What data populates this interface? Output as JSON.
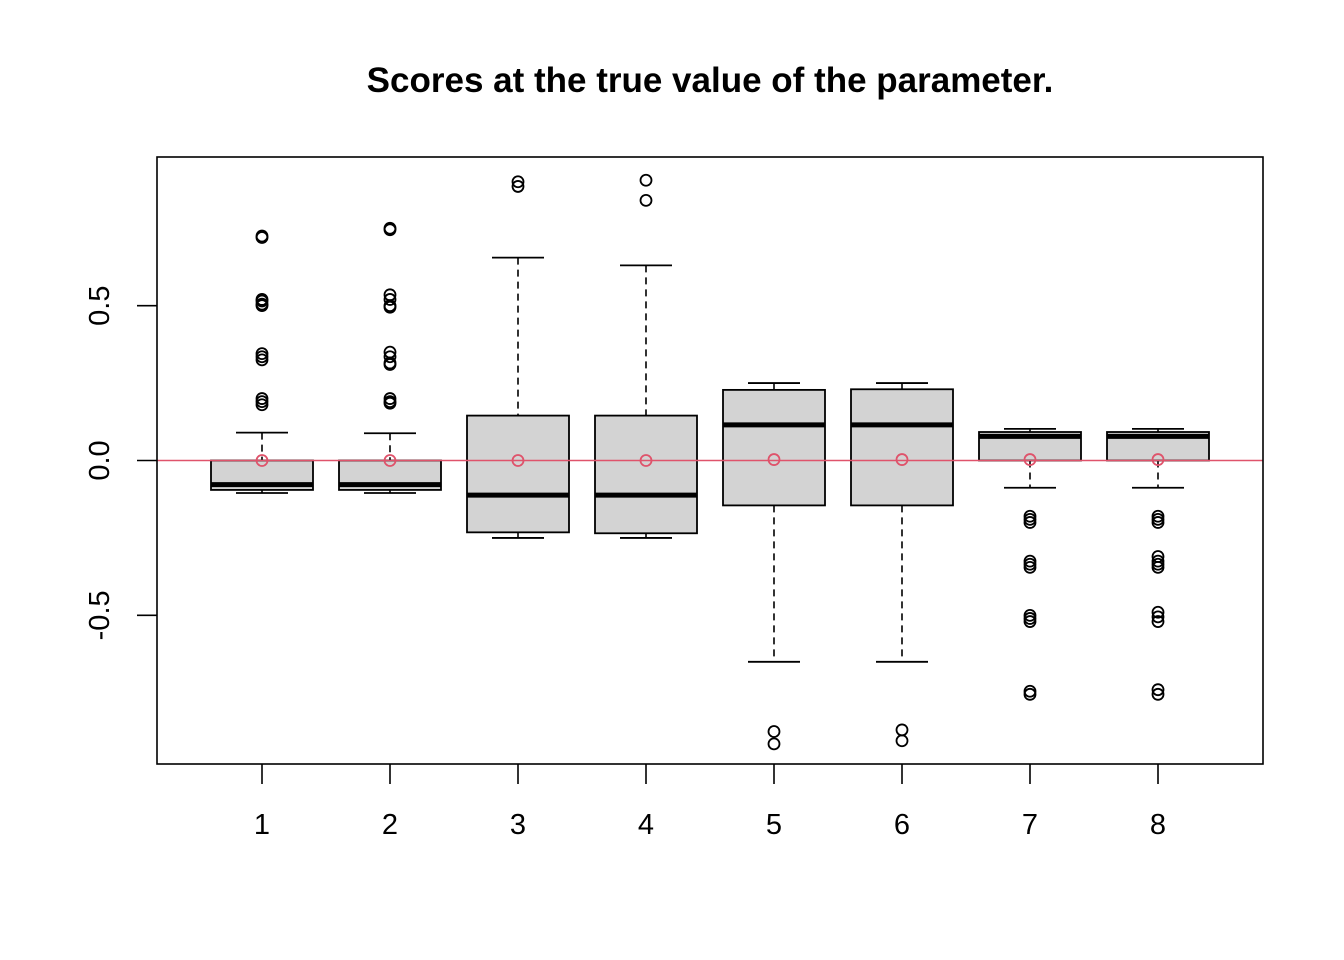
{
  "chart_data": {
    "type": "boxplot",
    "title": "Scores at the true value of the parameter.",
    "xlabel": "",
    "ylabel": "",
    "categories": [
      "1",
      "2",
      "3",
      "4",
      "5",
      "6",
      "7",
      "8"
    ],
    "y_ticks": [
      -0.5,
      0.0,
      0.5
    ],
    "y_tick_labels": [
      "-0.5",
      "0.0",
      "0.5"
    ],
    "ylim": [
      -0.98,
      0.98
    ],
    "reference_line": {
      "y": 0.0,
      "color": "#DF536B"
    },
    "colors": {
      "box_fill": "#D3D3D3",
      "stroke": "#000000",
      "mean_marker": "#DF536B",
      "reference_line": "#DF536B"
    },
    "boxes": [
      {
        "label": "1",
        "lower_whisker": -0.105,
        "q1": -0.095,
        "median": -0.078,
        "q3": 0.0,
        "upper_whisker": 0.09,
        "mean": 0.0,
        "outliers": [
          0.72,
          0.725,
          0.52,
          0.515,
          0.505,
          0.5,
          0.345,
          0.335,
          0.325,
          0.2,
          0.19,
          0.18
        ]
      },
      {
        "label": "2",
        "lower_whisker": -0.105,
        "q1": -0.095,
        "median": -0.078,
        "q3": 0.0,
        "upper_whisker": 0.088,
        "mean": 0.0,
        "outliers": [
          0.75,
          0.745,
          0.535,
          0.52,
          0.5,
          0.495,
          0.35,
          0.335,
          0.315,
          0.31,
          0.2,
          0.19,
          0.185
        ]
      },
      {
        "label": "3",
        "lower_whisker": -0.25,
        "q1": -0.232,
        "median": -0.112,
        "q3": 0.145,
        "upper_whisker": 0.655,
        "mean": 0.0,
        "outliers": [
          0.9,
          0.885
        ]
      },
      {
        "label": "4",
        "lower_whisker": -0.25,
        "q1": -0.235,
        "median": -0.112,
        "q3": 0.145,
        "upper_whisker": 0.63,
        "mean": 0.0,
        "outliers": [
          0.905,
          0.84
        ]
      },
      {
        "label": "5",
        "lower_whisker": -0.65,
        "q1": -0.145,
        "median": 0.115,
        "q3": 0.228,
        "upper_whisker": 0.25,
        "mean": 0.003,
        "outliers": [
          -0.875,
          -0.915
        ]
      },
      {
        "label": "6",
        "lower_whisker": -0.65,
        "q1": -0.145,
        "median": 0.115,
        "q3": 0.23,
        "upper_whisker": 0.25,
        "mean": 0.003,
        "outliers": [
          -0.87,
          -0.905
        ]
      },
      {
        "label": "7",
        "lower_whisker": -0.088,
        "q1": 0.0,
        "median": 0.078,
        "q3": 0.092,
        "upper_whisker": 0.102,
        "mean": 0.003,
        "outliers": [
          -0.18,
          -0.19,
          -0.2,
          -0.325,
          -0.335,
          -0.345,
          -0.5,
          -0.51,
          -0.52,
          -0.745,
          -0.755
        ]
      },
      {
        "label": "8",
        "lower_whisker": -0.088,
        "q1": 0.0,
        "median": 0.078,
        "q3": 0.092,
        "upper_whisker": 0.102,
        "mean": 0.003,
        "outliers": [
          -0.18,
          -0.19,
          -0.2,
          -0.31,
          -0.325,
          -0.335,
          -0.345,
          -0.49,
          -0.505,
          -0.52,
          -0.74,
          -0.755
        ]
      }
    ]
  }
}
